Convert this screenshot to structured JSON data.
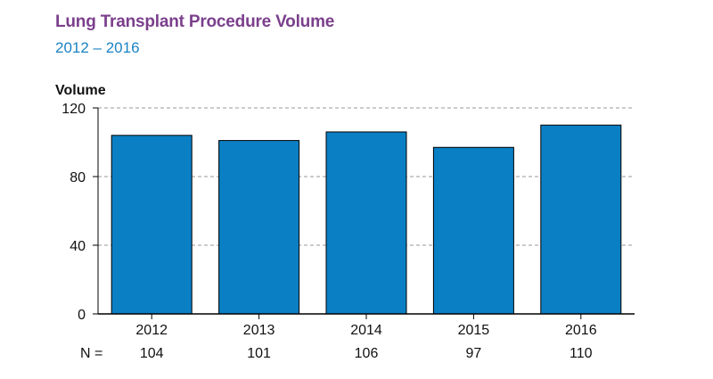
{
  "header": {
    "title": "Lung Transplant Procedure Volume",
    "subtitle": "2012 – 2016"
  },
  "chart_data": {
    "type": "bar",
    "title": "Lung Transplant Procedure Volume",
    "subtitle": "2012 – 2016",
    "xlabel": "",
    "ylabel": "Volume",
    "categories": [
      "2012",
      "2013",
      "2014",
      "2015",
      "2016"
    ],
    "values": [
      104,
      101,
      106,
      97,
      110
    ],
    "ylim": [
      0,
      120
    ],
    "yticks": [
      0,
      40,
      80,
      120
    ],
    "grid": "dashed horizontal",
    "n_label": "N =",
    "n_values": [
      "104",
      "101",
      "106",
      "97",
      "110"
    ],
    "bar_color": "#0a7fc4",
    "bar_stroke": "#000000",
    "grid_color": "#999999"
  }
}
